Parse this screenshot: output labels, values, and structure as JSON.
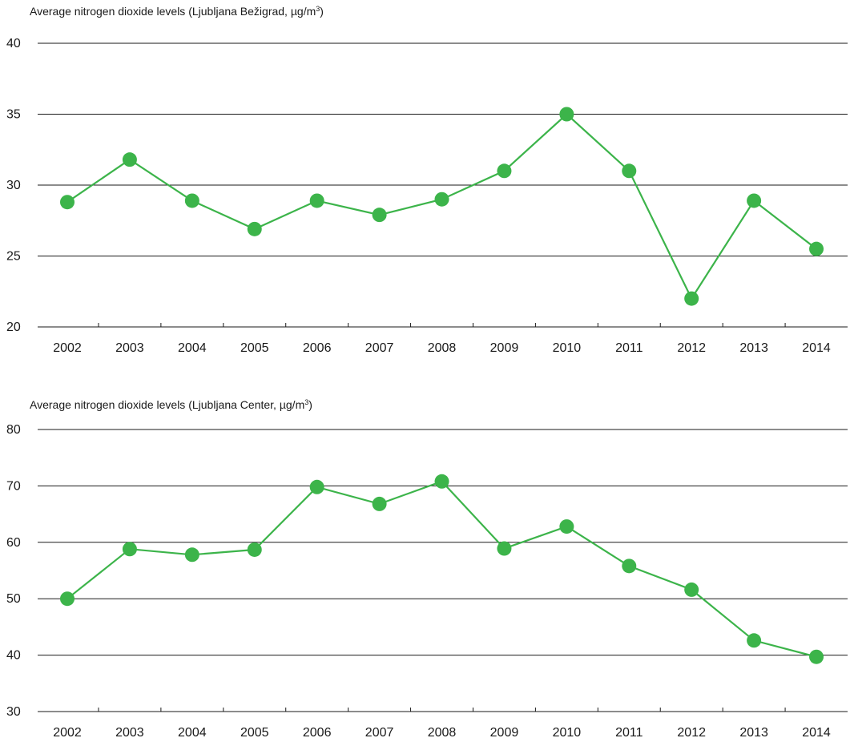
{
  "colors": {
    "series": "#3cb44a",
    "grid": "#1a1a1a",
    "text": "#1a1a1a"
  },
  "chart_data": [
    {
      "type": "line",
      "title": "Average nitrogen dioxide levels (Ljubljana Bežigrad, µg/m",
      "title_sup": "3",
      "title_end": ")",
      "x": [
        "2002",
        "2003",
        "2004",
        "2005",
        "2006",
        "2007",
        "2008",
        "2009",
        "2010",
        "2011",
        "2012",
        "2013",
        "2014"
      ],
      "series": [
        {
          "values": [
            28.8,
            31.8,
            28.9,
            26.9,
            28.9,
            27.9,
            29.0,
            31.0,
            35.0,
            31.0,
            22.0,
            28.9,
            25.5
          ]
        }
      ],
      "ylim": [
        20,
        40
      ],
      "yticks": [
        "20",
        "25",
        "30",
        "35",
        "40"
      ],
      "grid": true
    },
    {
      "type": "line",
      "title": "Average nitrogen dioxide levels (Ljubljana Center, µg/m",
      "title_sup": "3",
      "title_end": ")",
      "x": [
        "2002",
        "2003",
        "2004",
        "2005",
        "2006",
        "2007",
        "2008",
        "2009",
        "2010",
        "2011",
        "2012",
        "2013",
        "2014"
      ],
      "series": [
        {
          "values": [
            50.0,
            58.8,
            57.8,
            58.7,
            69.8,
            66.8,
            70.8,
            58.9,
            62.8,
            55.8,
            51.6,
            42.6,
            39.7
          ]
        }
      ],
      "ylim": [
        30,
        80
      ],
      "yticks": [
        "30",
        "40",
        "50",
        "60",
        "70",
        "80"
      ],
      "grid": true
    }
  ]
}
